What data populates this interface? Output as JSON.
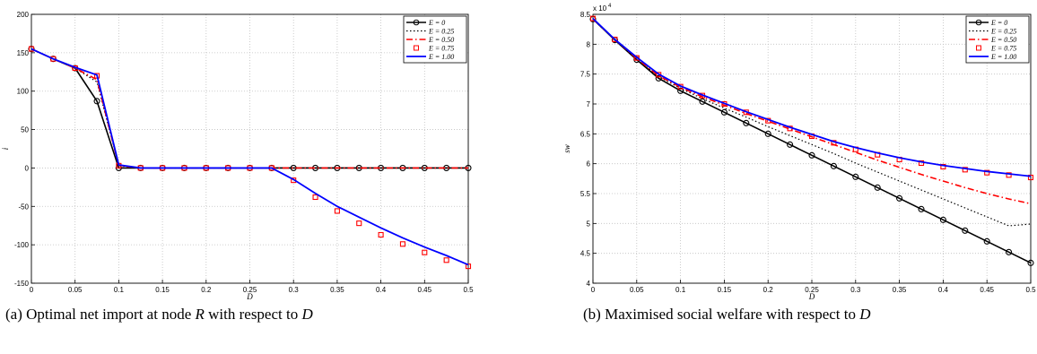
{
  "figure": {
    "caption_a_prefix": "(a) Optimal net import at node ",
    "caption_a_var": "R",
    "caption_a_mid": " with respect to ",
    "caption_a_var2": "D",
    "caption_b_prefix": "(b) Maximised social welfare with respect to ",
    "caption_b_var": "D"
  },
  "colors": {
    "E0": "#000000",
    "E025": "#000000",
    "E050": "#ff0000",
    "E075": "#ff0000",
    "E100": "#0000ff",
    "grid": "#c0c0c0"
  },
  "chart_data": [
    {
      "type": "line",
      "title": "",
      "xlabel": "D",
      "ylabel": "i",
      "xlim": [
        0,
        0.5
      ],
      "ylim": [
        -150,
        200
      ],
      "xticks": [
        "0",
        "0.05",
        "0.1",
        "0.15",
        "0.2",
        "0.25",
        "0.3",
        "0.35",
        "0.4",
        "0.45",
        "0.5"
      ],
      "yticks": [
        "200",
        "150",
        "100",
        "50",
        "0",
        "-50",
        "-100",
        "-150"
      ],
      "grid": true,
      "legend_position": "top-right",
      "x": [
        0,
        0.025,
        0.05,
        0.075,
        0.1,
        0.125,
        0.15,
        0.175,
        0.2,
        0.225,
        0.25,
        0.275,
        0.3,
        0.325,
        0.35,
        0.375,
        0.4,
        0.425,
        0.45,
        0.475,
        0.5
      ],
      "series": [
        {
          "name": "E = 0",
          "style": "solid-circle",
          "values": [
            155,
            142,
            130,
            87,
            0,
            0,
            0,
            0,
            0,
            0,
            0,
            0,
            0,
            0,
            0,
            0,
            0,
            0,
            0,
            0,
            0
          ]
        },
        {
          "name": "E = 0.25",
          "style": "dotted",
          "values": [
            155,
            142,
            130,
            112,
            3,
            0,
            0,
            0,
            0,
            0,
            0,
            0,
            0,
            0,
            0,
            0,
            0,
            0,
            0,
            0,
            0
          ]
        },
        {
          "name": "E = 0.50",
          "style": "dashdot",
          "values": [
            155,
            142,
            130,
            115,
            3,
            0,
            0,
            0,
            0,
            0,
            0,
            0,
            0,
            0,
            0,
            0,
            0,
            0,
            0,
            0,
            0
          ]
        },
        {
          "name": "E = 0.75",
          "style": "square",
          "values": [
            155,
            142,
            130,
            120,
            3,
            0,
            0,
            0,
            0,
            0,
            0,
            0,
            -16,
            -38,
            -56,
            -72,
            -87,
            -99,
            -110,
            -120,
            -128
          ]
        },
        {
          "name": "E = 1.00",
          "style": "solid",
          "values": [
            155,
            142,
            131,
            121,
            4,
            0,
            0,
            0,
            0,
            0,
            0,
            0,
            -15,
            -33,
            -50,
            -64,
            -78,
            -91,
            -103,
            -114,
            -126
          ]
        }
      ]
    },
    {
      "type": "line",
      "title": "",
      "xlabel": "D",
      "ylabel": "sw",
      "y_multiplier": "x 10",
      "y_multiplier_exp": "4",
      "xlim": [
        0,
        0.5
      ],
      "ylim": [
        4,
        8.5
      ],
      "xticks": [
        "0",
        "0.05",
        "0.1",
        "0.15",
        "0.2",
        "0.25",
        "0.3",
        "0.35",
        "0.4",
        "0.45",
        "0.5"
      ],
      "yticks": [
        "8.5",
        "8",
        "7.5",
        "7",
        "6.5",
        "6",
        "5.5",
        "5",
        "4.5",
        "4"
      ],
      "grid": true,
      "legend_position": "top-right",
      "x": [
        0,
        0.025,
        0.05,
        0.075,
        0.1,
        0.125,
        0.15,
        0.175,
        0.2,
        0.225,
        0.25,
        0.275,
        0.3,
        0.325,
        0.35,
        0.375,
        0.4,
        0.425,
        0.45,
        0.475,
        0.5
      ],
      "series": [
        {
          "name": "E = 0",
          "style": "solid-circle",
          "values": [
            8.42,
            8.07,
            7.74,
            7.43,
            7.22,
            7.04,
            6.86,
            6.68,
            6.5,
            6.32,
            6.14,
            5.96,
            5.78,
            5.6,
            5.42,
            5.24,
            5.06,
            4.88,
            4.7,
            4.52,
            4.34
          ]
        },
        {
          "name": "E = 0.25",
          "style": "dotted",
          "values": [
            8.42,
            8.07,
            7.75,
            7.46,
            7.26,
            7.09,
            6.93,
            6.78,
            6.62,
            6.47,
            6.32,
            6.17,
            6.01,
            5.86,
            5.71,
            5.56,
            5.41,
            5.26,
            5.11,
            4.96,
            4.99
          ]
        },
        {
          "name": "E = 0.50",
          "style": "dashdot",
          "values": [
            8.42,
            8.08,
            7.76,
            7.47,
            7.28,
            7.12,
            6.98,
            6.84,
            6.71,
            6.58,
            6.45,
            6.32,
            6.19,
            6.06,
            5.94,
            5.82,
            5.71,
            5.6,
            5.5,
            5.41,
            5.33
          ]
        },
        {
          "name": "E = 0.75",
          "style": "square",
          "values": [
            8.43,
            8.08,
            7.77,
            7.49,
            7.29,
            7.14,
            7.0,
            6.86,
            6.72,
            6.59,
            6.46,
            6.35,
            6.24,
            6.15,
            6.07,
            6.01,
            5.95,
            5.9,
            5.85,
            5.81,
            5.77
          ]
        },
        {
          "name": "E = 1.00",
          "style": "solid",
          "values": [
            8.43,
            8.08,
            7.78,
            7.5,
            7.3,
            7.15,
            7.01,
            6.87,
            6.74,
            6.61,
            6.49,
            6.37,
            6.27,
            6.18,
            6.1,
            6.03,
            5.97,
            5.92,
            5.87,
            5.83,
            5.79
          ]
        }
      ]
    }
  ]
}
